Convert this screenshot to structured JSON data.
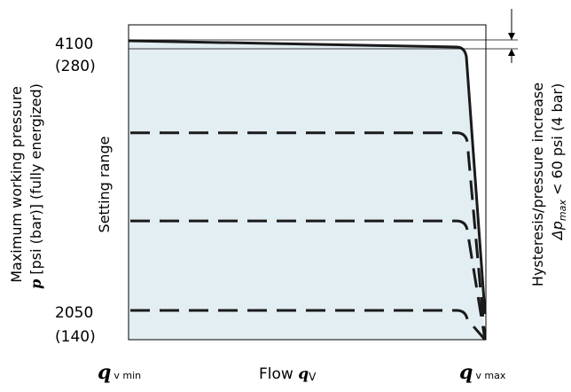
{
  "chart_data": {
    "type": "line",
    "title": "",
    "colors": {
      "setting_range_fill": "#e3eef3",
      "curve": "#1a1a1a",
      "frame": "#000000"
    },
    "y_axis": {
      "label_line1": "Maximum working pressure",
      "label_line2_symbol": "p",
      "label_line2_text": " [psi (bar)] (fully energized)",
      "ticks": [
        {
          "value": 4100,
          "label_main": "4100",
          "label_sub": "(280)"
        },
        {
          "value": 2050,
          "label_main": "2050",
          "label_sub": "(140)"
        }
      ]
    },
    "x_axis": {
      "label_text": "Flow ",
      "label_symbol": "q",
      "label_symbol_sub": "V",
      "min_symbol": "q",
      "min_sub": "v min",
      "max_symbol": "q",
      "max_sub": "v max"
    },
    "region_label": "Setting range",
    "hysteresis": {
      "label_line1": "Hysteresis/pressure increase",
      "label_line2_symbol": "Δp",
      "label_line2_sub": "max",
      "label_line2_text": " < 60 psi (4 bar)"
    },
    "series": [
      {
        "style": "solid",
        "pressure_psi": 4100
      },
      {
        "style": "dashed",
        "pressure_psi": 3400
      },
      {
        "style": "dashed",
        "pressure_psi": 2730
      },
      {
        "style": "dashed",
        "pressure_psi": 2050
      }
    ]
  }
}
